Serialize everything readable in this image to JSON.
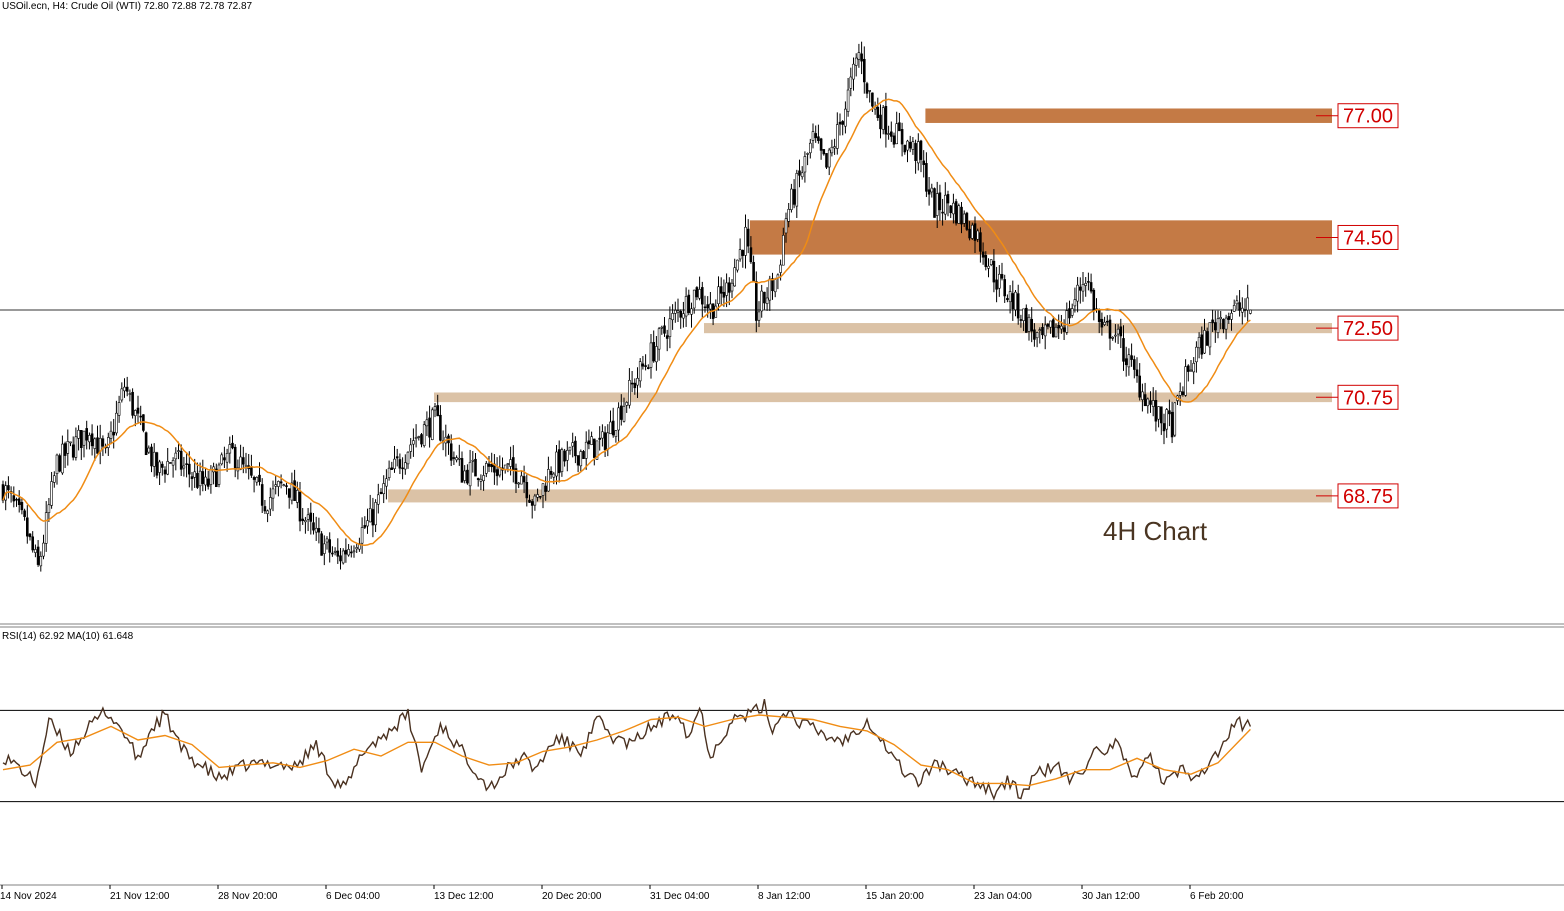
{
  "header": {
    "symbol_line": "USOil.ecn, H4:  Crude Oil (WTI)  72.80 72.88 72.78 72.87",
    "rsi_line": "RSI(14) 62.92 MA(10) 61.648"
  },
  "annotation": "4H Chart",
  "colors": {
    "candle": "#000000",
    "ma": "#f08c14",
    "zone_strong": "#c47a45",
    "zone_light": "#dbc2a6",
    "level_text": "#d10000",
    "rsi": "#4a3120",
    "rsi_ma": "#f08c14"
  },
  "chart_data": [
    {
      "type": "candlestick",
      "title": "USOil.ecn, H4: Crude Oil (WTI)",
      "last": {
        "open": 72.8,
        "high": 72.88,
        "low": 72.78,
        "close": 72.87
      },
      "current_price_line": 72.87,
      "x_tick_labels": [
        "14 Nov 2024",
        "21 Nov 12:00",
        "28 Nov 20:00",
        "6 Dec 04:00",
        "13 Dec 12:00",
        "20 Dec 20:00",
        "31 Dec 04:00",
        "8 Jan 12:00",
        "15 Jan 20:00",
        "23 Jan 04:00",
        "30 Jan 12:00",
        "6 Feb 20:00"
      ],
      "x_tick_bars": [
        0,
        40,
        80,
        120,
        160,
        200,
        240,
        280,
        320,
        360,
        400,
        440
      ],
      "y_range": [
        66.4,
        79.3
      ],
      "close_series_bars": [
        0,
        8,
        13,
        20,
        32,
        38,
        45,
        57,
        63,
        75,
        85,
        97,
        105,
        115,
        124,
        136,
        143,
        152,
        160,
        170,
        180,
        192,
        197,
        203,
        212,
        222,
        235,
        247,
        257,
        262,
        268,
        275,
        279,
        287,
        290,
        300,
        305,
        312,
        317,
        322,
        331,
        339,
        345,
        350,
        360,
        368,
        376,
        384,
        394,
        401,
        407,
        411,
        420,
        428,
        433,
        437,
        442,
        450,
        458,
        462
      ],
      "close_series_values": [
        69.2,
        68.4,
        67.5,
        69.7,
        70.4,
        69.8,
        71.3,
        69.5,
        69.8,
        69.2,
        69.9,
        68.9,
        69.3,
        68.2,
        67.7,
        68.5,
        69.4,
        70.2,
        70.6,
        69.5,
        69.6,
        69.5,
        68.8,
        69.6,
        69.9,
        70.1,
        71.5,
        72.6,
        73.3,
        72.9,
        73.3,
        74.4,
        72.8,
        73.6,
        74.8,
        76.4,
        75.8,
        77.1,
        78.2,
        77.1,
        76.5,
        76.1,
        75.0,
        75.1,
        74.5,
        73.5,
        72.9,
        72.2,
        72.7,
        73.6,
        72.4,
        72.5,
        71.4,
        70.6,
        70.5,
        71.3,
        72.0,
        72.7,
        72.9,
        72.87
      ],
      "ma_period_note": "",
      "levels": [
        {
          "label": "77.00",
          "y_from": 76.75,
          "y_to": 77.05,
          "style": "strong",
          "from_bar": 342
        },
        {
          "label": "74.50",
          "y_from": 74.02,
          "y_to": 74.73,
          "style": "strong",
          "from_bar": 277
        },
        {
          "label": "72.50",
          "y_from": 72.39,
          "y_to": 72.6,
          "style": "light",
          "from_bar": 260
        },
        {
          "label": "70.75",
          "y_from": 70.96,
          "y_to": 71.16,
          "style": "light",
          "from_bar": 160
        },
        {
          "label": "68.75",
          "y_from": 68.88,
          "y_to": 69.15,
          "style": "light",
          "from_bar": 143
        }
      ]
    },
    {
      "type": "line",
      "title": "RSI(14) 62.92 MA(10) 61.648",
      "ylim": [
        0,
        100
      ],
      "guide_levels": [
        70,
        30
      ],
      "rsi_bars": [
        0,
        6,
        12,
        17,
        25,
        30,
        38,
        45,
        50,
        55,
        60,
        66,
        72,
        80,
        90,
        100,
        108,
        116,
        122,
        127,
        134,
        140,
        150,
        155,
        162,
        170,
        180,
        192,
        197,
        205,
        215,
        220,
        226,
        233,
        238,
        245,
        250,
        254,
        258,
        262,
        270,
        276,
        282,
        285,
        290,
        295,
        300,
        306,
        312,
        320,
        333,
        340,
        345,
        352,
        362,
        367,
        372,
        377,
        383,
        390,
        395,
        400,
        404,
        408,
        412,
        418,
        424,
        430,
        436,
        440,
        446,
        452,
        457,
        462
      ],
      "rsi_values": [
        50,
        45,
        38,
        65,
        52,
        60,
        70,
        60,
        48,
        62,
        68,
        53,
        47,
        40,
        46,
        47,
        45,
        55,
        40,
        36,
        53,
        58,
        68,
        44,
        64,
        52,
        36,
        50,
        44,
        58,
        52,
        66,
        58,
        55,
        61,
        66,
        70,
        58,
        72,
        50,
        66,
        68,
        72,
        62,
        70,
        65,
        62,
        58,
        57,
        66,
        44,
        38,
        48,
        42,
        38,
        34,
        39,
        33,
        42,
        46,
        39,
        44,
        54,
        48,
        57,
        40,
        51,
        38,
        44,
        42,
        45,
        55,
        65,
        62.92
      ],
      "rsi_ma_bars": [
        0,
        10,
        20,
        30,
        40,
        50,
        60,
        70,
        80,
        90,
        100,
        110,
        120,
        130,
        140,
        150,
        160,
        170,
        180,
        190,
        200,
        210,
        220,
        230,
        240,
        250,
        260,
        270,
        280,
        290,
        300,
        310,
        320,
        330,
        340,
        350,
        360,
        370,
        380,
        390,
        400,
        410,
        420,
        430,
        440,
        450,
        462
      ],
      "rsi_ma_values": [
        44,
        46,
        56,
        58,
        63,
        57,
        59,
        55,
        45,
        46,
        47,
        45,
        48,
        53,
        50,
        56,
        56,
        50,
        46,
        47,
        52,
        54,
        57,
        61,
        66,
        67,
        63,
        66,
        68,
        67,
        66,
        63,
        61,
        55,
        46,
        44,
        38,
        38,
        37,
        40,
        44,
        44,
        49,
        44,
        42,
        47,
        61.648
      ]
    }
  ]
}
